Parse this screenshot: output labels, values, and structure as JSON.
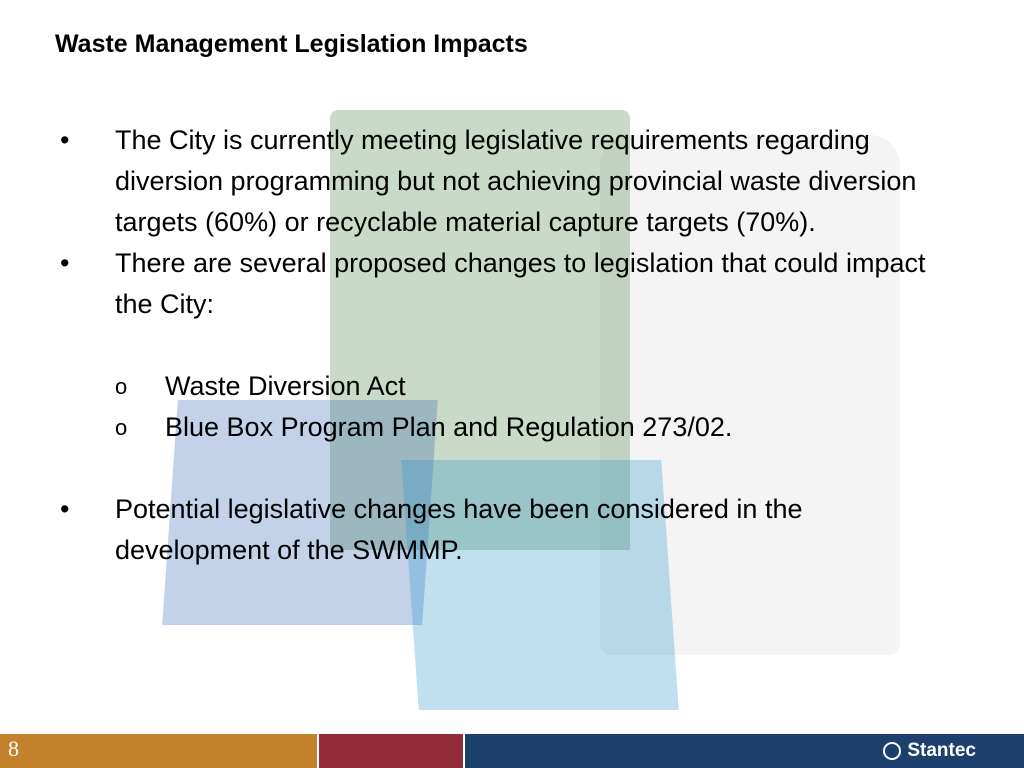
{
  "slide": {
    "title": "Waste Management Legislation Impacts",
    "bullets": [
      "The City is currently meeting legislative requirements regarding diversion programming but not achieving provincial waste diversion targets (60%) or recyclable material capture targets (70%).",
      "There are several proposed changes to legislation that could impact the City:",
      "Potential legislative changes have been considered in the development of the SWMMP."
    ],
    "sub_bullets": [
      "Waste Diversion Act",
      "Blue Box Program Plan and Regulation 273/02."
    ],
    "bullet_glyph": "•",
    "sub_bullet_glyph": "o"
  },
  "footer": {
    "page_number": "8",
    "logo_text": "Stantec",
    "colors": {
      "orange": "#c4812c",
      "red": "#912c38",
      "blue": "#1c3f6e"
    }
  }
}
